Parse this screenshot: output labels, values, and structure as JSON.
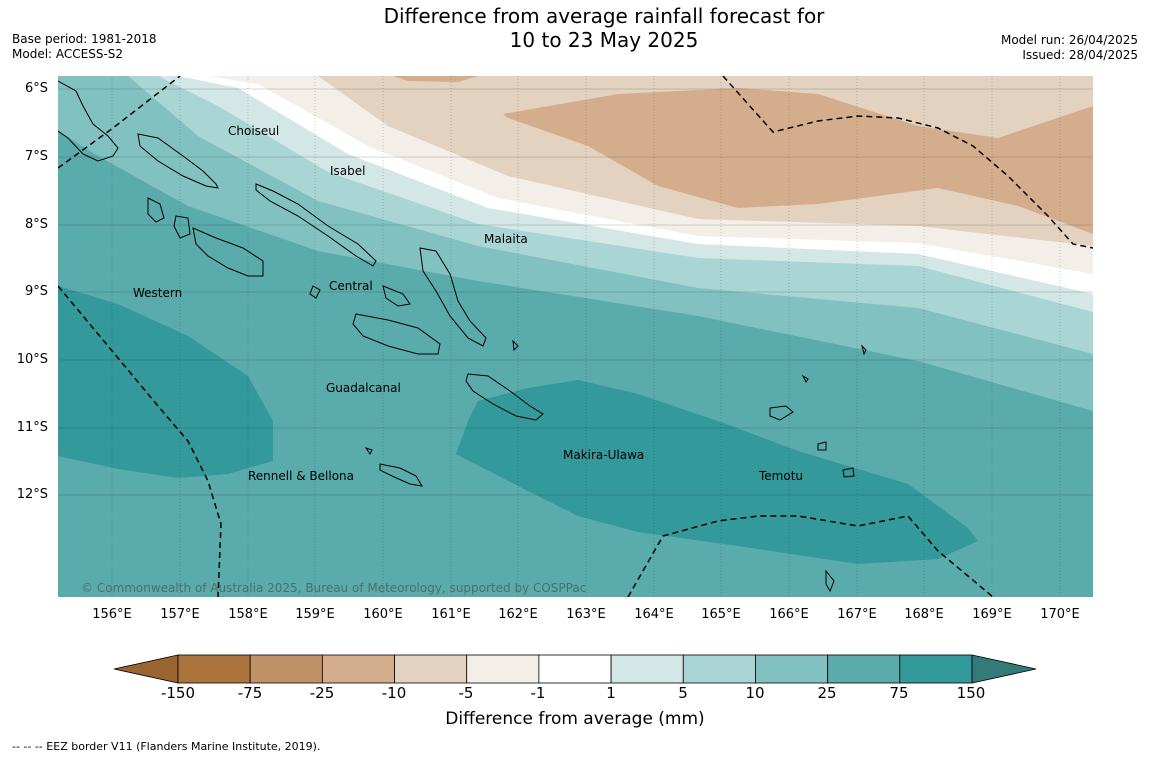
{
  "title": {
    "line1": "Difference from average rainfall forecast for",
    "line2": "10 to 23 May 2025"
  },
  "meta_left": {
    "base_period": "Base period: 1981-2018",
    "model": "Model: ACCESS-S2"
  },
  "meta_right": {
    "model_run": "Model run: 26/04/2025",
    "issued": "Issued: 28/04/2025"
  },
  "map": {
    "lat_labels": [
      "6°S",
      "7°S",
      "8°S",
      "9°S",
      "10°S",
      "11°S",
      "12°S"
    ],
    "lon_labels": [
      "156°E",
      "157°E",
      "158°E",
      "159°E",
      "160°E",
      "161°E",
      "162°E",
      "163°E",
      "164°E",
      "165°E",
      "166°E",
      "167°E",
      "168°E",
      "169°E",
      "170°E"
    ],
    "places": [
      {
        "name": "Choiseul"
      },
      {
        "name": "Isabel"
      },
      {
        "name": "Malaita"
      },
      {
        "name": "Western"
      },
      {
        "name": "Central"
      },
      {
        "name": "Guadalcanal"
      },
      {
        "name": "Makira-Ulawa"
      },
      {
        "name": "Rennell & Bellona"
      },
      {
        "name": "Temotu"
      }
    ],
    "copyright": "© Commonwealth of Australia 2025, Bureau of Meteorology, supported by COSPPac"
  },
  "colorbar": {
    "ticks": [
      "-150",
      "-75",
      "-25",
      "-10",
      "-5",
      "-1",
      "1",
      "5",
      "10",
      "25",
      "75",
      "150"
    ],
    "colors": [
      "#ab743c",
      "#c1926a",
      "#d4ae8c",
      "#e4d2c1",
      "#f3eee8",
      "#ffffff",
      "#d3e7e6",
      "#aad5d5",
      "#82c1c1",
      "#5aabac",
      "#33999a"
    ],
    "under_color": "#9a6530",
    "over_color": "#347a78",
    "label": "Difference from average (mm)"
  },
  "footer": "--  --  -- EEZ border V11 (Flanders Marine Institute, 2019)."
}
